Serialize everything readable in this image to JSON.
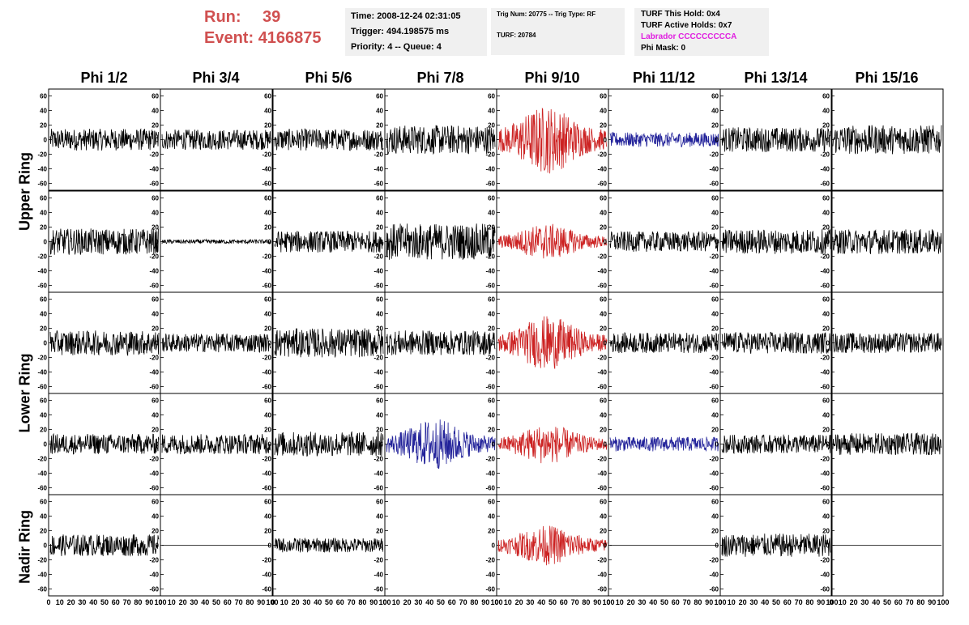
{
  "run": {
    "run_label": "Run:",
    "run_value": "39",
    "event_label": "Event:",
    "event_value": "4166875"
  },
  "box1": {
    "line1": "Time: 2008-12-24 02:31:05",
    "line2": "Trigger: 494.198575 ms",
    "line3": "Priority: 4 -- Queue: 4"
  },
  "box2": {
    "line1": "Trig Num: 20775 -- Trig Type: RF",
    "line2": "TURF: 20784"
  },
  "box3": {
    "line1": "TURF This Hold: 0x4",
    "line2": "TURF Active Holds: 0x7",
    "line3": "Labrador CCCCCCCCCA",
    "line4": "Phi Mask: 0"
  },
  "colors": {
    "title_red": "#d05050",
    "trace_black": "#000000",
    "trace_red": "#cc2222",
    "trace_blue": "#22229a",
    "labrador_magenta": "#e020e0",
    "box_bg": "#f0f0f0"
  },
  "columns": [
    "Phi 1/2",
    "Phi 3/4",
    "Phi 5/6",
    "Phi 7/8",
    "Phi 9/10",
    "Phi 11/12",
    "Phi 13/14",
    "Phi 15/16"
  ],
  "rings": [
    "Upper Ring",
    "Lower Ring",
    "Nadir Ring"
  ],
  "chart_data": {
    "type": "line",
    "layout": "grid of 5 rows x 8 columns of waveform panels",
    "xlim": [
      0,
      100
    ],
    "ylim": [
      -65,
      65
    ],
    "x_tick_labels": [
      "0",
      "10",
      "20",
      "30",
      "40",
      "50",
      "60",
      "70",
      "80",
      "90",
      "100"
    ],
    "y_tick_labels": [
      "60",
      "40",
      "20",
      "0",
      "-20",
      "-40",
      "-60"
    ],
    "rows": [
      {
        "group": "Upper Ring",
        "cells": [
          {
            "color": "black",
            "amplitude": 15
          },
          {
            "color": "black",
            "amplitude": 14
          },
          {
            "color": "black",
            "amplitude": 15
          },
          {
            "color": "black",
            "amplitude": 20
          },
          {
            "color": "red",
            "amplitude": 38
          },
          {
            "color": "blue",
            "amplitude": 10
          },
          {
            "color": "black",
            "amplitude": 17
          },
          {
            "color": "black",
            "amplitude": 20
          }
        ]
      },
      {
        "group": "Upper Ring",
        "cells": [
          {
            "color": "black",
            "amplitude": 18
          },
          {
            "color": "black",
            "amplitude": 3
          },
          {
            "color": "black",
            "amplitude": 15
          },
          {
            "color": "black",
            "amplitude": 25
          },
          {
            "color": "red",
            "amplitude": 20
          },
          {
            "color": "black",
            "amplitude": 14
          },
          {
            "color": "black",
            "amplitude": 17
          },
          {
            "color": "black",
            "amplitude": 17
          }
        ]
      },
      {
        "group": "Lower Ring",
        "cells": [
          {
            "color": "black",
            "amplitude": 17
          },
          {
            "color": "black",
            "amplitude": 13
          },
          {
            "color": "black",
            "amplitude": 20
          },
          {
            "color": "black",
            "amplitude": 17
          },
          {
            "color": "red",
            "amplitude": 30
          },
          {
            "color": "black",
            "amplitude": 14
          },
          {
            "color": "black",
            "amplitude": 15
          },
          {
            "color": "black",
            "amplitude": 14
          }
        ]
      },
      {
        "group": "Lower Ring",
        "cells": [
          {
            "color": "black",
            "amplitude": 14
          },
          {
            "color": "black",
            "amplitude": 14
          },
          {
            "color": "black",
            "amplitude": 17
          },
          {
            "color": "blue",
            "amplitude": 28
          },
          {
            "color": "red",
            "amplitude": 22
          },
          {
            "color": "blue",
            "amplitude": 10
          },
          {
            "color": "black",
            "amplitude": 13
          },
          {
            "color": "black",
            "amplitude": 15
          }
        ]
      },
      {
        "group": "Nadir Ring",
        "cells": [
          {
            "color": "black",
            "amplitude": 15
          },
          {
            "color": "black",
            "amplitude": 0
          },
          {
            "color": "black",
            "amplitude": 10
          },
          {
            "color": "none",
            "amplitude": 0
          },
          {
            "color": "red",
            "amplitude": 22
          },
          {
            "color": "black",
            "amplitude": 0
          },
          {
            "color": "black",
            "amplitude": 16
          },
          {
            "color": "black",
            "amplitude": 0
          }
        ]
      }
    ]
  }
}
